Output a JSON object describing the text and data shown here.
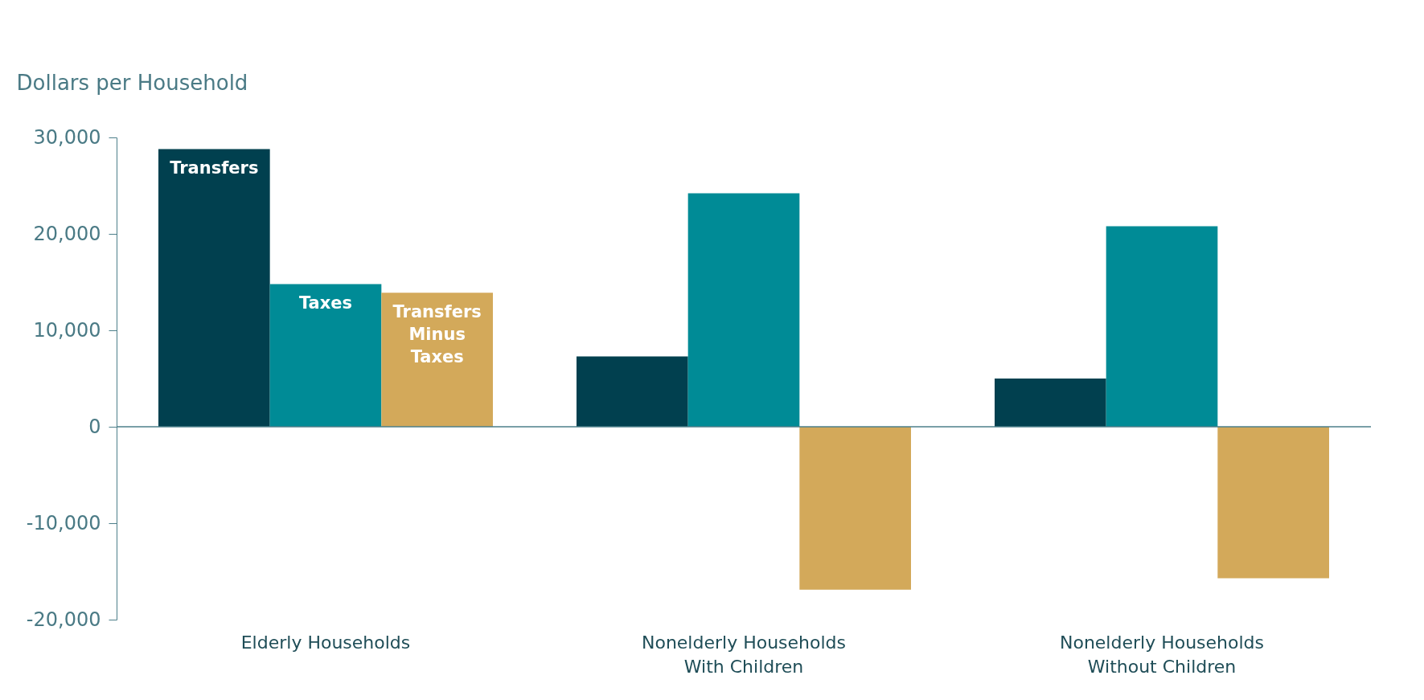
{
  "chart_data": {
    "type": "bar",
    "ylabel": "Dollars per Household",
    "categories": [
      "Elderly Households",
      "Nonelderly Households With Children",
      "Nonelderly Households Without Children"
    ],
    "series": [
      {
        "name": "Transfers",
        "color": "#01404f",
        "values": [
          28800,
          7300,
          5000
        ]
      },
      {
        "name": "Taxes",
        "color": "#008b96",
        "values": [
          14800,
          24200,
          20800
        ]
      },
      {
        "name": "Transfers Minus Taxes",
        "color": "#d3a95a",
        "values": [
          13900,
          -16900,
          -15700
        ]
      }
    ],
    "ylim": [
      -20000,
      30000
    ],
    "yticks": [
      {
        "value": -20000,
        "label": "-20,000"
      },
      {
        "value": -10000,
        "label": "-10,000"
      },
      0,
      {
        "value": 10000,
        "label": "10,000"
      },
      {
        "value": 20000,
        "label": "20,000"
      },
      {
        "value": 30000,
        "label": "30,000"
      }
    ],
    "ref_lines": [
      {
        "axis": "y",
        "value": 0,
        "color": "#4d7f8a"
      }
    ],
    "grid": false,
    "legend": false
  }
}
